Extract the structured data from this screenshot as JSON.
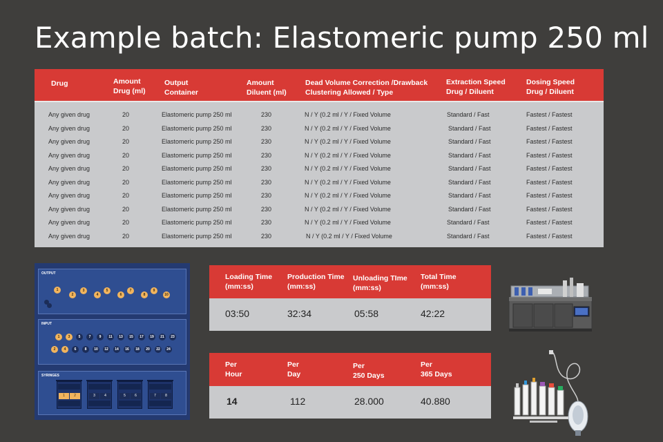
{
  "title": "Example batch: Elastomeric pump 250 ml",
  "main_table": {
    "headers": {
      "drug": "Drug",
      "amount_drug": [
        "Amount",
        "Drug (ml)"
      ],
      "output_container": [
        "Output",
        "Container"
      ],
      "amount_diluent": [
        "Amount",
        "Diluent (ml)"
      ],
      "dead_volume": [
        "Dead Volume Correction /Drawback",
        "Clustering Allowed / Type"
      ],
      "extraction_speed": [
        "Extraction Speed",
        "Drug / Diluent"
      ],
      "dosing_speed": [
        "Dosing Speed",
        "Drug / Diluent"
      ]
    },
    "rows": [
      {
        "drug": "Any given drug",
        "amount": "20",
        "container": "Elastomeric pump 250 ml",
        "diluent": "230",
        "dead": "N / Y (0.2 ml / Y / Fixed Volume",
        "extraction": "Standard / Fast",
        "dosing": "Fastest / Fastest"
      },
      {
        "drug": "Any given drug",
        "amount": "20",
        "container": "Elastomeric pump 250 ml",
        "diluent": "230",
        "dead": "N / Y (0.2 ml / Y / Fixed Volume",
        "extraction": "Standard / Fast",
        "dosing": "Fastest / Fastest"
      },
      {
        "drug": "Any given drug",
        "amount": "20",
        "container": "Elastomeric pump 250 ml",
        "diluent": "230",
        "dead": "N / Y (0.2 ml / Y / Fixed Volume",
        "extraction": "Standard / Fast",
        "dosing": "Fastest / Fastest"
      },
      {
        "drug": "Any given drug",
        "amount": "20",
        "container": "Elastomeric pump 250 ml",
        "diluent": "230",
        "dead": "N / Y (0.2 ml / Y / Fixed Volume",
        "extraction": "Standard / Fast",
        "dosing": "Fastest / Fastest"
      },
      {
        "drug": "Any given drug",
        "amount": "20",
        "container": "Elastomeric pump 250 ml",
        "diluent": "230",
        "dead": "N / Y (0.2 ml / Y / Fixed Volume",
        "extraction": "Standard / Fast",
        "dosing": "Fastest / Fastest"
      },
      {
        "drug": "Any given drug",
        "amount": "20",
        "container": "Elastomeric pump 250 ml",
        "diluent": "230",
        "dead": "N / Y (0.2 ml / Y / Fixed Volume",
        "extraction": "Standard / Fast",
        "dosing": "Fastest / Fastest"
      },
      {
        "drug": "Any given drug",
        "amount": "20",
        "container": "Elastomeric pump 250 ml",
        "diluent": "230",
        "dead": "N / Y (0.2 ml / Y / Fixed Volume",
        "extraction": "Standard / Fast",
        "dosing": "Fastest / Fastest"
      },
      {
        "drug": "Any given drug",
        "amount": "20",
        "container": "Elastomeric pump 250 ml",
        "diluent": "230",
        "dead": "N / Y (0.2 ml / Y / Fixed Volume",
        "extraction": "Standard / Fast",
        "dosing": "Fastest / Fastest"
      },
      {
        "drug": "Any given drug",
        "amount": "20",
        "container": "Elastomeric pump 250 ml",
        "diluent": "230",
        "dead": "N / Y (0.2 ml / Y / Fixed Volume",
        "extraction": "Standard / Fast",
        "dosing": "Fastest / Fastest"
      },
      {
        "drug": "Any given drug",
        "amount": "20",
        "container": "Elastomeric pump 250 ml",
        "diluent": "230",
        "dead": "N / Y (0.2 ml / Y / Fixed Volume",
        "extraction": "Standard / Fast",
        "dosing": "Fastest / Fastest"
      }
    ]
  },
  "time_table": {
    "headers": [
      [
        "Loading Time",
        "(mm:ss)"
      ],
      [
        "Production Time",
        "(mm:ss)"
      ],
      [
        "Unloading TIme",
        "(mm:ss)"
      ],
      [
        "Total Time",
        "(mm:ss)"
      ]
    ],
    "values": [
      "03:50",
      "32:34",
      "05:58",
      "42:22"
    ]
  },
  "rate_table": {
    "headers": [
      [
        "Per",
        "Hour"
      ],
      [
        "Per",
        "Day"
      ],
      [
        "Per",
        "250 Days"
      ],
      [
        "Per",
        "365 Days"
      ]
    ],
    "values": [
      "14",
      "112",
      "28.000",
      "40.880"
    ]
  },
  "diagram": {
    "output_label": "OUTPUT",
    "input_label": "INPUT",
    "syringes_label": "SYRINGES",
    "output_dots": [
      "1",
      "2",
      "3",
      "4",
      "5",
      "6",
      "7",
      "8",
      "9",
      "10"
    ],
    "input_top": [
      "1",
      "3",
      "5",
      "7",
      "9",
      "11",
      "13",
      "15",
      "17",
      "19",
      "21",
      "23"
    ],
    "input_bottom": [
      "2",
      "4",
      "6",
      "8",
      "10",
      "12",
      "14",
      "16",
      "18",
      "20",
      "22",
      "24"
    ],
    "syringe_slots": [
      [
        "1",
        "2"
      ],
      [
        "3",
        "4"
      ],
      [
        "5",
        "6"
      ],
      [
        "7",
        "8"
      ]
    ]
  },
  "colors": {
    "accent": "#d83a35",
    "background": "#3f3e3c",
    "table_body": "#c9cacc",
    "diagram_bg": "#243a71",
    "orange": "#f1b45d"
  }
}
